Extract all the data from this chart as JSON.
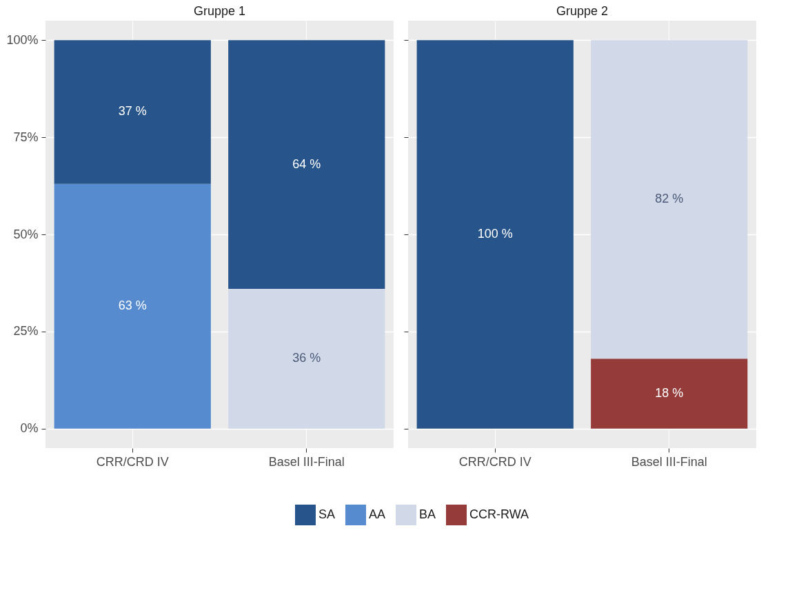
{
  "chart_data": [
    {
      "type": "bar",
      "title": "Gruppe 1",
      "stacked": true,
      "categories": [
        "CRR/CRD IV",
        "Basel III-Final"
      ],
      "ylim": [
        -5,
        105
      ],
      "yticks": [
        {
          "value": 0,
          "label": "0%"
        },
        {
          "value": 25,
          "label": "25%"
        },
        {
          "value": 50,
          "label": "50%"
        },
        {
          "value": 75,
          "label": "75%"
        },
        {
          "value": 100,
          "label": "100%"
        }
      ],
      "grid": true,
      "legend": "bottom",
      "series": [
        {
          "name": "BA",
          "color": "#d1d8e7",
          "values": [
            null,
            36
          ],
          "value_labels": [
            null,
            "36 %"
          ]
        },
        {
          "name": "AA",
          "color": "#568bd0",
          "values": [
            63,
            null
          ],
          "value_labels": [
            "63 %",
            null
          ]
        },
        {
          "name": "SA",
          "color": "#27548a",
          "values": [
            37,
            64
          ],
          "value_labels": [
            "37 %",
            "64 %"
          ]
        }
      ]
    },
    {
      "type": "bar",
      "title": "Gruppe 2",
      "stacked": true,
      "categories": [
        "CRR/CRD IV",
        "Basel III-Final"
      ],
      "ylim": [
        -5,
        105
      ],
      "yticks": [
        {
          "value": 0,
          "label": null
        },
        {
          "value": 25,
          "label": null
        },
        {
          "value": 50,
          "label": null
        },
        {
          "value": 75,
          "label": null
        },
        {
          "value": 100,
          "label": null
        }
      ],
      "grid": true,
      "legend": "bottom",
      "tick_labels": "x",
      "series": [
        {
          "name": "CCR-RWA",
          "color": "#953c3b",
          "values": [
            null,
            18
          ],
          "value_labels": [
            null,
            "18 %"
          ]
        },
        {
          "name": "BA",
          "color": "#d1d8e7",
          "values": [
            null,
            82
          ],
          "value_labels": [
            null,
            "82 %"
          ]
        },
        {
          "name": "SA",
          "color": "#27548a",
          "values": [
            100,
            null
          ],
          "value_labels": [
            "100 %",
            null
          ]
        }
      ]
    }
  ]
}
